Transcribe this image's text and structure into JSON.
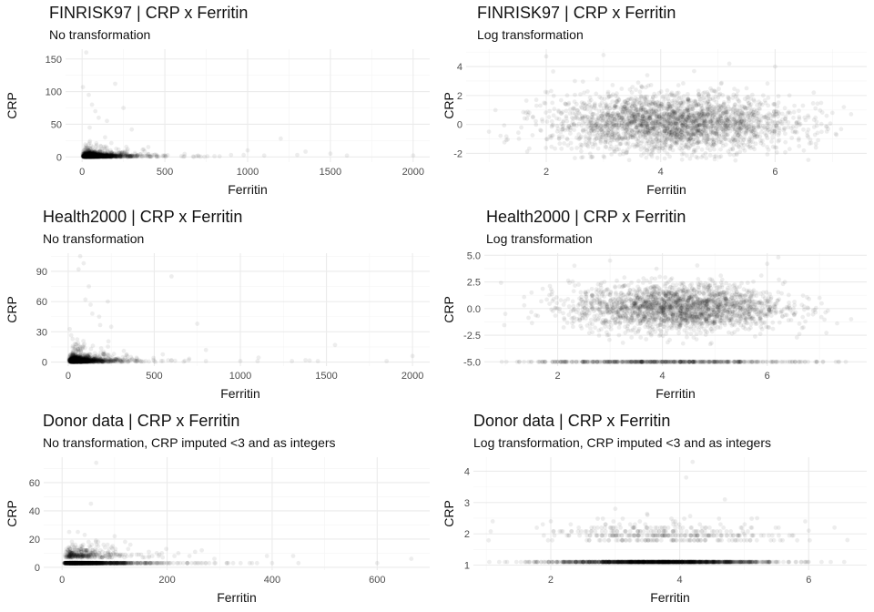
{
  "charts": [
    {
      "title": "FINRISK97 | CRP x Ferritin",
      "subtitle": "No transformation",
      "xlabel": "Ferritin",
      "ylabel": "CRP",
      "type": "scatter",
      "xlim": [
        -100,
        2100
      ],
      "ylim": [
        -8,
        165
      ],
      "xticks": [
        0,
        500,
        1000,
        1500,
        2000
      ],
      "yticks": [
        0,
        50,
        100,
        150
      ],
      "xtick_labels": [
        "0",
        "500",
        "1000",
        "1500",
        "2000"
      ],
      "ytick_labels": [
        "0",
        "50",
        "100",
        "150"
      ]
    },
    {
      "title": "FINRISK97 | CRP x Ferritin",
      "subtitle": "Log transformation",
      "xlabel": "Ferritin",
      "ylabel": "CRP",
      "type": "scatter",
      "xlim": [
        0.6,
        7.6
      ],
      "ylim": [
        -2.6,
        5.2
      ],
      "xticks": [
        2,
        4,
        6
      ],
      "yticks": [
        -2,
        0,
        2,
        4
      ],
      "xtick_labels": [
        "2",
        "4",
        "6"
      ],
      "ytick_labels": [
        "-2",
        "0",
        "2",
        "4"
      ]
    },
    {
      "title": "Health2000 | CRP x Ferritin",
      "subtitle": "No transformation",
      "xlabel": "Ferritin",
      "ylabel": "CRP",
      "type": "scatter",
      "xlim": [
        -100,
        2100
      ],
      "ylim": [
        -4,
        108
      ],
      "xticks": [
        0,
        500,
        1000,
        1500,
        2000
      ],
      "yticks": [
        0,
        30,
        60,
        90
      ],
      "xtick_labels": [
        "0",
        "500",
        "1000",
        "1500",
        "2000"
      ],
      "ytick_labels": [
        "0",
        "30",
        "60",
        "90"
      ]
    },
    {
      "title": "Health2000 | CRP x Ferritin",
      "subtitle": "Log transformation",
      "xlabel": "Ferritin",
      "ylabel": "CRP",
      "type": "scatter",
      "xlim": [
        0.6,
        7.9
      ],
      "ylim": [
        -5.4,
        5.2
      ],
      "xticks": [
        2,
        4,
        6
      ],
      "yticks": [
        -5,
        -2.5,
        0,
        2.5,
        5
      ],
      "xtick_labels": [
        "2",
        "4",
        "6"
      ],
      "ytick_labels": [
        "-5.0",
        "-2.5",
        "0.0",
        "2.5",
        "5.0"
      ]
    },
    {
      "title": "Donor data | CRP x Ferritin",
      "subtitle": "No transformation, CRP imputed <3 and as integers",
      "xlabel": "Ferritin",
      "ylabel": "CRP",
      "type": "scatter",
      "xlim": [
        -35,
        700
      ],
      "ylim": [
        -2,
        78
      ],
      "xticks": [
        0,
        200,
        400,
        600
      ],
      "yticks": [
        0,
        20,
        40,
        60
      ],
      "xtick_labels": [
        "0",
        "200",
        "400",
        "600"
      ],
      "ytick_labels": [
        "0",
        "20",
        "40",
        "60"
      ]
    },
    {
      "title": "Donor data | CRP x Ferritin",
      "subtitle": "Log transformation, CRP imputed <3 and as integers",
      "xlabel": "Ferritin",
      "ylabel": "CRP",
      "type": "scatter",
      "xlim": [
        0.8,
        6.9
      ],
      "ylim": [
        0.84,
        4.45
      ],
      "xticks": [
        2,
        4,
        6
      ],
      "yticks": [
        1,
        2,
        3,
        4
      ],
      "xtick_labels": [
        "2",
        "4",
        "6"
      ],
      "ytick_labels": [
        "1",
        "2",
        "3",
        "4"
      ]
    }
  ],
  "chart_data": [
    {
      "type": "scatter",
      "title": "FINRISK97 | CRP x Ferritin",
      "subtitle": "No transformation",
      "xlabel": "Ferritin",
      "ylabel": "CRP",
      "xlim": [
        -100,
        2100
      ],
      "ylim": [
        -8,
        165
      ],
      "grid": true,
      "points": [
        [
          30,
          2
        ],
        [
          45,
          5
        ],
        [
          60,
          1
        ],
        [
          80,
          3
        ],
        [
          100,
          4
        ],
        [
          120,
          8
        ],
        [
          150,
          2
        ],
        [
          180,
          6
        ],
        [
          200,
          3
        ],
        [
          250,
          5
        ],
        [
          300,
          2
        ],
        [
          350,
          4
        ],
        [
          400,
          1
        ],
        [
          450,
          3
        ],
        [
          500,
          2
        ],
        [
          600,
          1
        ],
        [
          700,
          2
        ],
        [
          800,
          1
        ],
        [
          900,
          3
        ],
        [
          1000,
          10
        ],
        [
          1100,
          2
        ],
        [
          1200,
          28
        ],
        [
          1300,
          3
        ],
        [
          1350,
          8
        ],
        [
          1500,
          5
        ],
        [
          1600,
          2
        ],
        [
          2000,
          2
        ],
        [
          5,
          107
        ],
        [
          25,
          160
        ],
        [
          40,
          95
        ],
        [
          60,
          80
        ],
        [
          80,
          70
        ],
        [
          100,
          60
        ],
        [
          150,
          55
        ],
        [
          200,
          112
        ],
        [
          250,
          75
        ],
        [
          300,
          42
        ],
        [
          400,
          15
        ]
      ]
    },
    {
      "type": "scatter",
      "title": "FINRISK97 | CRP x Ferritin",
      "subtitle": "Log transformation",
      "xlabel": "Ferritin",
      "ylabel": "CRP",
      "xlim": [
        0.6,
        7.6
      ],
      "ylim": [
        -2.6,
        5.2
      ],
      "grid": true,
      "points": [
        [
          1,
          -0.5
        ],
        [
          2,
          4.7
        ],
        [
          2.5,
          3
        ],
        [
          3,
          -2.2
        ],
        [
          4,
          0
        ],
        [
          4.5,
          1
        ],
        [
          5,
          -1
        ],
        [
          5.5,
          2.5
        ],
        [
          6,
          4
        ],
        [
          6.5,
          -1.8
        ],
        [
          7,
          0.8
        ],
        [
          7.2,
          1.2
        ],
        [
          3.5,
          0.5
        ],
        [
          4.2,
          -0.5
        ],
        [
          3,
          4.8
        ],
        [
          5.2,
          4.2
        ]
      ]
    },
    {
      "type": "scatter",
      "title": "Health2000 | CRP x Ferritin",
      "subtitle": "No transformation",
      "xlabel": "Ferritin",
      "ylabel": "CRP",
      "xlim": [
        -100,
        2100
      ],
      "ylim": [
        -4,
        108
      ],
      "grid": true,
      "points": [
        [
          30,
          2
        ],
        [
          50,
          3
        ],
        [
          80,
          1
        ],
        [
          100,
          4
        ],
        [
          150,
          2
        ],
        [
          200,
          3
        ],
        [
          300,
          2
        ],
        [
          400,
          1
        ],
        [
          500,
          1
        ],
        [
          600,
          2
        ],
        [
          700,
          2
        ],
        [
          800,
          1
        ],
        [
          1000,
          1
        ],
        [
          1100,
          1
        ],
        [
          1300,
          1
        ],
        [
          1450,
          1
        ],
        [
          1550,
          17
        ],
        [
          1850,
          1
        ],
        [
          2000,
          6
        ],
        [
          60,
          92
        ],
        [
          70,
          105
        ],
        [
          90,
          98
        ],
        [
          120,
          75
        ],
        [
          100,
          62
        ],
        [
          130,
          57
        ],
        [
          140,
          48
        ],
        [
          180,
          45
        ],
        [
          230,
          60
        ],
        [
          250,
          35
        ],
        [
          600,
          85
        ],
        [
          750,
          38
        ],
        [
          800,
          12
        ]
      ]
    },
    {
      "type": "scatter",
      "title": "Health2000 | CRP x Ferritin",
      "subtitle": "Log transformation",
      "xlabel": "Ferritin",
      "ylabel": "CRP",
      "xlim": [
        0.6,
        7.9
      ],
      "ylim": [
        -5.4,
        5.2
      ],
      "grid": true,
      "points": [
        [
          1,
          -0.5
        ],
        [
          1.5,
          1.5
        ],
        [
          2,
          -5
        ],
        [
          3,
          -5
        ],
        [
          4,
          -5
        ],
        [
          5,
          -5
        ],
        [
          6,
          -5
        ],
        [
          3,
          4.5
        ],
        [
          4,
          0
        ],
        [
          4.5,
          1
        ],
        [
          5,
          -1
        ],
        [
          6,
          4.2
        ],
        [
          6.5,
          0
        ],
        [
          7,
          1
        ],
        [
          7.5,
          -5
        ]
      ]
    },
    {
      "type": "scatter",
      "title": "Donor data | CRP x Ferritin",
      "subtitle": "No transformation, CRP imputed <3 and as integers",
      "xlabel": "Ferritin",
      "ylabel": "CRP",
      "xlim": [
        -35,
        700
      ],
      "ylim": [
        -2,
        78
      ],
      "grid": true,
      "points": [
        [
          10,
          3
        ],
        [
          20,
          3
        ],
        [
          30,
          3
        ],
        [
          40,
          3
        ],
        [
          50,
          3
        ],
        [
          60,
          3
        ],
        [
          80,
          3
        ],
        [
          100,
          3
        ],
        [
          120,
          3
        ],
        [
          150,
          3
        ],
        [
          180,
          3
        ],
        [
          200,
          3
        ],
        [
          225,
          3
        ],
        [
          260,
          3
        ],
        [
          290,
          3
        ],
        [
          340,
          3
        ],
        [
          400,
          3
        ],
        [
          440,
          8
        ],
        [
          450,
          3
        ],
        [
          600,
          3
        ],
        [
          665,
          6
        ],
        [
          65,
          74
        ],
        [
          55,
          45
        ],
        [
          100,
          22
        ],
        [
          120,
          18
        ],
        [
          190,
          10
        ],
        [
          290,
          6
        ],
        [
          390,
          8
        ],
        [
          40,
          16
        ],
        [
          30,
          25
        ]
      ]
    },
    {
      "type": "scatter",
      "title": "Donor data | CRP x Ferritin",
      "subtitle": "Log transformation, CRP imputed <3 and as integers",
      "xlabel": "Ferritin",
      "ylabel": "CRP",
      "xlim": [
        0.8,
        6.9
      ],
      "ylim": [
        0.84,
        4.45
      ],
      "grid": true,
      "points": [
        [
          1.1,
          2.4
        ],
        [
          1.2,
          1.1
        ],
        [
          1.6,
          1.1
        ],
        [
          2,
          2.4
        ],
        [
          2.2,
          1.1
        ],
        [
          2.5,
          1.1
        ],
        [
          3,
          1.1
        ],
        [
          3.5,
          1.1
        ],
        [
          4,
          1.1
        ],
        [
          4.5,
          1.1
        ],
        [
          5,
          1.1
        ],
        [
          5.5,
          1.1
        ],
        [
          6,
          1.1
        ],
        [
          6.2,
          1.1
        ],
        [
          6.6,
          1.8
        ],
        [
          6.4,
          2.2
        ],
        [
          6,
          2.1
        ],
        [
          4.2,
          4.3
        ],
        [
          4.1,
          3.8
        ],
        [
          4.7,
          3.1
        ],
        [
          3,
          2.8
        ],
        [
          3.5,
          2.6
        ],
        [
          4,
          2.2
        ],
        [
          4.4,
          1.8
        ],
        [
          5.2,
          2.5
        ],
        [
          5,
          2
        ]
      ]
    }
  ]
}
